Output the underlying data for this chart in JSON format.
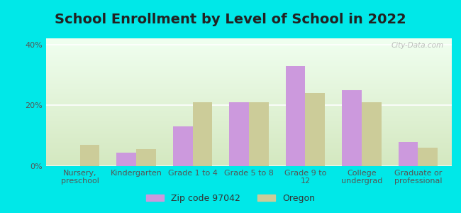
{
  "title": "School Enrollment by Level of School in 2022",
  "categories": [
    "Nursery,\npreschool",
    "Kindergarten",
    "Grade 1 to 4",
    "Grade 5 to 8",
    "Grade 9 to\n12",
    "College\nundergrad",
    "Graduate or\nprofessional"
  ],
  "zip_values": [
    0,
    4.5,
    13,
    21,
    33,
    25,
    8
  ],
  "oregon_values": [
    7,
    5.5,
    21,
    21,
    24,
    21,
    6
  ],
  "zip_color": "#cc99dd",
  "oregon_color": "#cccc99",
  "background_outer": "#00e8e8",
  "background_inner_top": "#f0fff0",
  "background_inner_bottom": "#d4e8c0",
  "ylim": [
    0,
    42
  ],
  "yticks": [
    0,
    20,
    40
  ],
  "legend_zip_label": "Zip code 97042",
  "legend_oregon_label": "Oregon",
  "bar_width": 0.35,
  "title_fontsize": 14,
  "tick_fontsize": 8,
  "legend_fontsize": 9,
  "watermark_text": "City-Data.com"
}
